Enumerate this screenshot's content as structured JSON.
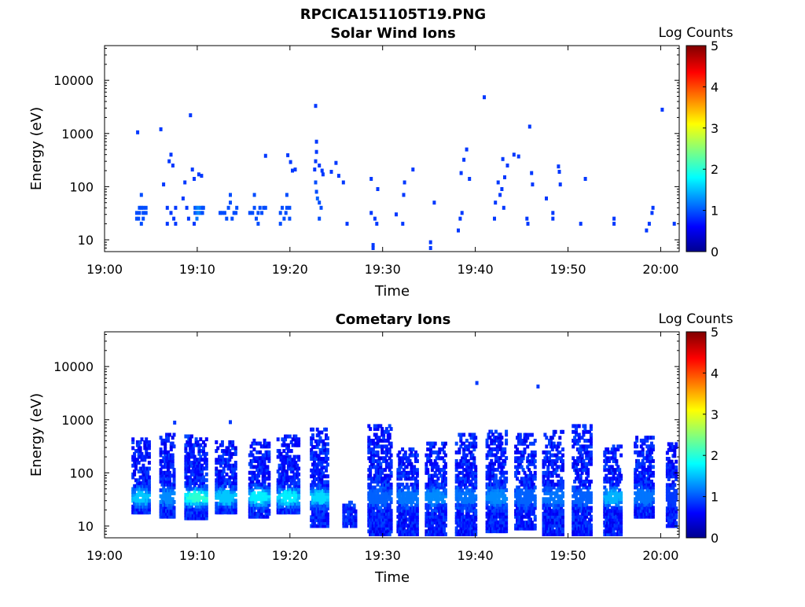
{
  "figure_title": "RPCICA151105T19.PNG",
  "colorbar": {
    "label": "Log Counts",
    "ticks": [
      "0",
      "1",
      "2",
      "3",
      "4",
      "5"
    ],
    "range": [
      0,
      5
    ],
    "colormap": "jet"
  },
  "chart_data": [
    {
      "type": "heatmap",
      "title": "Solar Wind Ions",
      "xlabel": "Time",
      "ylabel": "Energy (eV)",
      "xticks": [
        "19:00",
        "19:10",
        "19:20",
        "19:30",
        "19:40",
        "19:50",
        "20:00"
      ],
      "xlim_minutes": [
        0,
        62
      ],
      "yticks": [
        "10",
        "100",
        "1000",
        "10000"
      ],
      "ylim": [
        6,
        45000
      ],
      "yscale": "log",
      "grid": false,
      "points": [
        [
          3.3,
          25,
          1.0
        ],
        [
          3.3,
          32,
          1.0
        ],
        [
          3.5,
          25,
          1.0
        ],
        [
          3.6,
          40,
          1.0
        ],
        [
          3.6,
          32,
          1.0
        ],
        [
          3.8,
          40,
          1.0
        ],
        [
          3.8,
          70,
          1.0
        ],
        [
          3.8,
          20,
          1.0
        ],
        [
          4.0,
          40,
          1.0
        ],
        [
          4.0,
          25,
          1.0
        ],
        [
          4.0,
          32,
          1.0
        ],
        [
          4.3,
          40,
          1.0
        ],
        [
          4.3,
          32,
          1.0
        ],
        [
          3.4,
          1050,
          0.9
        ],
        [
          5.9,
          1200,
          0.9
        ],
        [
          6.2,
          110,
          0.9
        ],
        [
          6.6,
          40,
          0.9
        ],
        [
          6.6,
          20,
          0.9
        ],
        [
          6.8,
          300,
          0.9
        ],
        [
          7.0,
          400,
          0.9
        ],
        [
          7.0,
          32,
          0.9
        ],
        [
          7.2,
          250,
          0.9
        ],
        [
          7.3,
          25,
          0.9
        ],
        [
          7.5,
          40,
          0.9
        ],
        [
          7.5,
          20,
          0.9
        ],
        [
          8.3,
          60,
          0.9
        ],
        [
          8.5,
          120,
          0.9
        ],
        [
          8.7,
          40,
          0.9
        ],
        [
          8.9,
          25,
          0.9
        ],
        [
          9.1,
          2200,
          0.9
        ],
        [
          9.3,
          210,
          0.9
        ],
        [
          9.5,
          140,
          0.9
        ],
        [
          9.5,
          20,
          0.9
        ],
        [
          9.6,
          40,
          1.0
        ],
        [
          9.6,
          32,
          1.0
        ],
        [
          9.8,
          40,
          1.2
        ],
        [
          9.8,
          32,
          1.2
        ],
        [
          9.8,
          25,
          1.2
        ],
        [
          10.0,
          40,
          1.3
        ],
        [
          10.0,
          32,
          1.3
        ],
        [
          10.2,
          40,
          1.2
        ],
        [
          10.2,
          32,
          1.2
        ],
        [
          10.4,
          40,
          1.0
        ],
        [
          10.4,
          32,
          1.0
        ],
        [
          10.0,
          170,
          0.9
        ],
        [
          10.3,
          160,
          0.9
        ],
        [
          10.5,
          40,
          1.0
        ],
        [
          12.3,
          32,
          1.0
        ],
        [
          12.5,
          32,
          1.0
        ],
        [
          12.8,
          32,
          1.0
        ],
        [
          13.0,
          25,
          1.0
        ],
        [
          13.2,
          40,
          1.0
        ],
        [
          13.4,
          70,
          1.0
        ],
        [
          13.4,
          50,
          1.0
        ],
        [
          13.6,
          25,
          1.0
        ],
        [
          13.8,
          32,
          1.0
        ],
        [
          14.0,
          32,
          1.0
        ],
        [
          14.1,
          40,
          1.0
        ],
        [
          15.5,
          32,
          1.0
        ],
        [
          15.8,
          32,
          1.0
        ],
        [
          16.0,
          40,
          1.0
        ],
        [
          16.0,
          70,
          1.0
        ],
        [
          16.2,
          25,
          1.0
        ],
        [
          16.4,
          32,
          1.0
        ],
        [
          16.4,
          20,
          1.0
        ],
        [
          16.6,
          40,
          1.0
        ],
        [
          16.8,
          32,
          1.0
        ],
        [
          17.0,
          40,
          1.0
        ],
        [
          17.2,
          40,
          1.0
        ],
        [
          17.2,
          380,
          0.9
        ],
        [
          18.8,
          32,
          1.0
        ],
        [
          18.8,
          20,
          1.0
        ],
        [
          19.0,
          40,
          1.0
        ],
        [
          19.2,
          25,
          1.0
        ],
        [
          19.4,
          32,
          1.0
        ],
        [
          19.5,
          70,
          1.0
        ],
        [
          19.5,
          40,
          1.0
        ],
        [
          19.8,
          40,
          1.0
        ],
        [
          19.8,
          25,
          1.0
        ],
        [
          19.6,
          390,
          0.9
        ],
        [
          19.9,
          290,
          0.9
        ],
        [
          20.1,
          200,
          0.9
        ],
        [
          20.4,
          210,
          0.9
        ],
        [
          22.6,
          3300,
          0.9
        ],
        [
          22.7,
          700,
          0.9
        ],
        [
          22.7,
          450,
          0.9
        ],
        [
          22.6,
          300,
          0.9
        ],
        [
          22.6,
          120,
          1.0
        ],
        [
          22.7,
          80,
          1.0
        ],
        [
          22.8,
          60,
          1.1
        ],
        [
          23.0,
          50,
          1.0
        ],
        [
          23.0,
          25,
          1.0
        ],
        [
          23.2,
          40,
          1.0
        ],
        [
          23.0,
          250,
          0.9
        ],
        [
          23.3,
          200,
          0.9
        ],
        [
          23.4,
          170,
          0.9
        ],
        [
          22.5,
          210,
          0.9
        ],
        [
          24.3,
          190,
          0.9
        ],
        [
          24.8,
          280,
          0.9
        ],
        [
          25.1,
          160,
          0.9
        ],
        [
          25.6,
          120,
          0.9
        ],
        [
          26.0,
          20,
          0.9
        ],
        [
          28.6,
          140,
          0.9
        ],
        [
          28.6,
          32,
          0.9
        ],
        [
          28.8,
          8,
          0.9
        ],
        [
          28.8,
          7,
          0.9
        ],
        [
          29.0,
          25,
          0.9
        ],
        [
          29.2,
          20,
          0.9
        ],
        [
          29.3,
          90,
          0.9
        ],
        [
          31.3,
          30,
          0.9
        ],
        [
          32.0,
          20,
          0.9
        ],
        [
          32.1,
          70,
          0.9
        ],
        [
          32.2,
          120,
          0.9
        ],
        [
          33.1,
          210,
          0.9
        ],
        [
          35.0,
          9,
          0.9
        ],
        [
          35.0,
          7,
          0.9
        ],
        [
          35.4,
          50,
          0.9
        ],
        [
          38.0,
          15,
          0.9
        ],
        [
          38.2,
          25,
          0.9
        ],
        [
          38.4,
          32,
          0.9
        ],
        [
          38.3,
          180,
          0.9
        ],
        [
          38.6,
          320,
          0.9
        ],
        [
          38.9,
          500,
          0.9
        ],
        [
          39.2,
          140,
          0.9
        ],
        [
          40.8,
          4800,
          0.9
        ],
        [
          41.9,
          25,
          0.9
        ],
        [
          42.0,
          50,
          0.9
        ],
        [
          42.3,
          120,
          0.9
        ],
        [
          42.5,
          70,
          0.9
        ],
        [
          42.7,
          90,
          0.9
        ],
        [
          42.9,
          40,
          0.9
        ],
        [
          43.0,
          150,
          0.9
        ],
        [
          43.3,
          250,
          0.9
        ],
        [
          42.8,
          330,
          0.9
        ],
        [
          44.0,
          400,
          0.9
        ],
        [
          44.5,
          370,
          0.9
        ],
        [
          45.4,
          25,
          0.9
        ],
        [
          45.5,
          20,
          0.9
        ],
        [
          45.7,
          1350,
          0.9
        ],
        [
          45.9,
          180,
          0.9
        ],
        [
          46.0,
          110,
          0.9
        ],
        [
          47.5,
          60,
          0.9
        ],
        [
          48.2,
          25,
          0.9
        ],
        [
          48.2,
          32,
          0.9
        ],
        [
          48.8,
          240,
          0.9
        ],
        [
          48.9,
          190,
          0.9
        ],
        [
          49.0,
          110,
          0.9
        ],
        [
          51.2,
          20,
          0.9
        ],
        [
          51.7,
          140,
          0.9
        ],
        [
          54.8,
          25,
          0.9
        ],
        [
          54.8,
          20,
          0.9
        ],
        [
          58.3,
          15,
          0.9
        ],
        [
          58.6,
          20,
          0.9
        ],
        [
          58.9,
          32,
          0.9
        ],
        [
          59.0,
          40,
          0.9
        ],
        [
          60.0,
          2800,
          0.9
        ],
        [
          61.3,
          20,
          0.9
        ],
        [
          61.8,
          230,
          0.9
        ]
      ]
    },
    {
      "type": "heatmap",
      "title": "Cometary Ions",
      "xlabel": "Time",
      "ylabel": "Energy (eV)",
      "xticks": [
        "19:00",
        "19:10",
        "19:20",
        "19:30",
        "19:40",
        "19:50",
        "20:00"
      ],
      "xlim_minutes": [
        0,
        62
      ],
      "yticks": [
        "10",
        "100",
        "1000",
        "10000"
      ],
      "ylim": [
        6,
        45000
      ],
      "yscale": "log",
      "grid": false,
      "bursts": [
        {
          "t": 3.8,
          "w": 1.8,
          "elo": 18,
          "ehi": 450,
          "peak": 1.6
        },
        {
          "t": 6.7,
          "w": 1.6,
          "elo": 15,
          "ehi": 600,
          "peak": 1.3
        },
        {
          "t": 9.8,
          "w": 2.4,
          "elo": 14,
          "ehi": 550,
          "peak": 2.1
        },
        {
          "t": 13.0,
          "w": 2.2,
          "elo": 18,
          "ehi": 400,
          "peak": 1.6
        },
        {
          "t": 16.6,
          "w": 2.2,
          "elo": 15,
          "ehi": 420,
          "peak": 1.8
        },
        {
          "t": 19.7,
          "w": 2.3,
          "elo": 18,
          "ehi": 500,
          "peak": 1.8
        },
        {
          "t": 23.1,
          "w": 1.9,
          "elo": 10,
          "ehi": 700,
          "peak": 1.7
        },
        {
          "t": 26.3,
          "w": 1.3,
          "elo": 10,
          "ehi": 30,
          "peak": 1.0
        },
        {
          "t": 29.6,
          "w": 2.5,
          "elo": 7,
          "ehi": 800,
          "peak": 1.1
        },
        {
          "t": 32.6,
          "w": 2.2,
          "elo": 7,
          "ehi": 300,
          "peak": 1.2
        },
        {
          "t": 35.6,
          "w": 2.1,
          "elo": 7,
          "ehi": 400,
          "peak": 1.3
        },
        {
          "t": 38.9,
          "w": 2.2,
          "elo": 7,
          "ehi": 550,
          "peak": 1.2
        },
        {
          "t": 42.2,
          "w": 2.2,
          "elo": 8,
          "ehi": 600,
          "peak": 1.3
        },
        {
          "t": 45.3,
          "w": 2.2,
          "elo": 9,
          "ehi": 550,
          "peak": 1.1
        },
        {
          "t": 48.3,
          "w": 2.2,
          "elo": 7,
          "ehi": 600,
          "peak": 1.2
        },
        {
          "t": 51.4,
          "w": 2.0,
          "elo": 7,
          "ehi": 800,
          "peak": 1.1
        },
        {
          "t": 54.7,
          "w": 1.8,
          "elo": 7,
          "ehi": 350,
          "peak": 1.5
        },
        {
          "t": 58.1,
          "w": 2.0,
          "elo": 15,
          "ehi": 500,
          "peak": 1.2
        },
        {
          "t": 61.2,
          "w": 1.3,
          "elo": 10,
          "ehi": 350,
          "peak": 0.9
        }
      ],
      "points": [
        [
          40.0,
          4900,
          0.9
        ],
        [
          46.6,
          4200,
          0.9
        ],
        [
          13.4,
          900,
          0.9
        ],
        [
          7.4,
          880,
          0.9
        ]
      ]
    }
  ]
}
